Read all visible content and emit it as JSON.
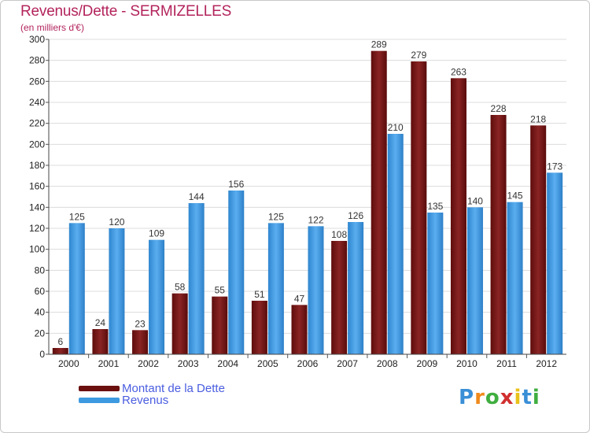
{
  "header": {
    "title": "Revenus/Dette - SERMIZELLES",
    "subtitle": "(en milliers d'€)"
  },
  "chart_data": {
    "type": "bar",
    "categories": [
      "2000",
      "2001",
      "2002",
      "2003",
      "2004",
      "2005",
      "2006",
      "2007",
      "2008",
      "2009",
      "2010",
      "2011",
      "2012"
    ],
    "series": [
      {
        "name": "Montant de la Dette",
        "color": "#7a1515",
        "values": [
          6,
          24,
          23,
          58,
          55,
          51,
          47,
          108,
          289,
          279,
          263,
          228,
          218
        ]
      },
      {
        "name": "Revenus",
        "color": "#3d9ae0",
        "values": [
          125,
          120,
          109,
          144,
          156,
          125,
          122,
          126,
          210,
          135,
          140,
          145,
          173
        ]
      }
    ],
    "ylim": [
      0,
      300
    ],
    "yticks": [
      0,
      20,
      40,
      60,
      80,
      100,
      120,
      140,
      160,
      180,
      200,
      220,
      240,
      260,
      280,
      300
    ],
    "grid": true,
    "legend_position": "bottom-left"
  },
  "legend": {
    "debt_label": "Montant de la Dette",
    "debt_color": "#6b0f0f",
    "revenue_label": "Revenus",
    "revenue_color": "#3d9ae0"
  },
  "logo": {
    "text": "Proxiti",
    "letter_colors": [
      "#3a8fd6",
      "#f08a1c",
      "#3fae3f",
      "#d12f2f",
      "#e8c21a",
      "#3a8fd6",
      "#3fae3f"
    ]
  }
}
